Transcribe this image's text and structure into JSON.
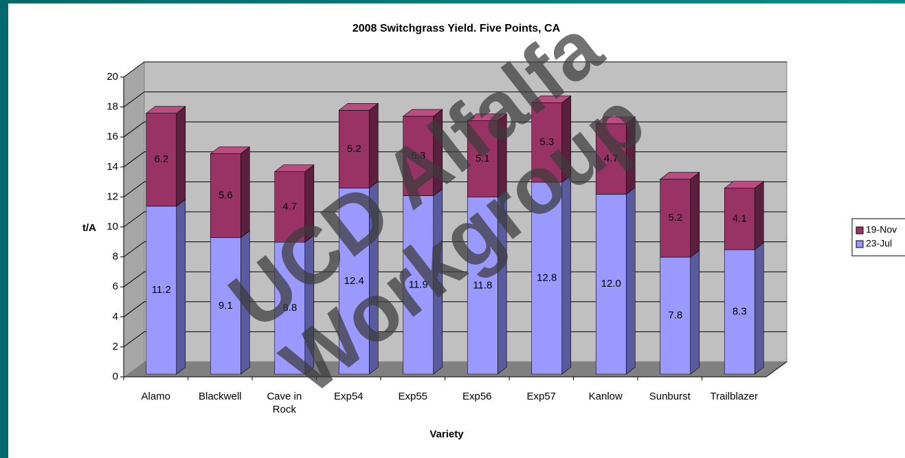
{
  "chart_data": {
    "type": "bar3d_stacked",
    "title": "2008 Switchgrass Yield.  Five Points, CA",
    "y_label": "t/A",
    "x_label": "Variety",
    "categories": [
      "Alamo",
      "Blackwell",
      "Cave in Rock",
      "Exp54",
      "Exp55",
      "Exp56",
      "Exp57",
      "Kanlow",
      "Sunburst",
      "Trailblazer"
    ],
    "series": [
      {
        "name": "23-Jul",
        "color": "#9999ff",
        "side": "#5a5a9e",
        "top": "#b3b3ff",
        "values": [
          11.2,
          9.1,
          8.8,
          12.4,
          11.9,
          11.8,
          12.8,
          12.0,
          7.8,
          8.3
        ],
        "value_labels": [
          "11.2",
          "9.1",
          "8.8",
          "12.4",
          "11.9",
          "11.8",
          "12.8",
          "12.0",
          "7.8",
          "8.3"
        ]
      },
      {
        "name": "19-Nov",
        "color": "#993366",
        "side": "#5c1f3d",
        "top": "#b84d80",
        "values": [
          6.2,
          5.6,
          4.7,
          5.2,
          5.3,
          5.1,
          5.3,
          4.7,
          5.2,
          4.1
        ]
      }
    ],
    "ylim": [
      0,
      20
    ],
    "yticks": [
      0,
      2,
      4,
      6,
      8,
      10,
      12,
      14,
      16,
      18,
      20
    ],
    "grid": true,
    "legend": "right",
    "annotations": [
      "UCD Alfalfa",
      "Workgroup"
    ]
  }
}
